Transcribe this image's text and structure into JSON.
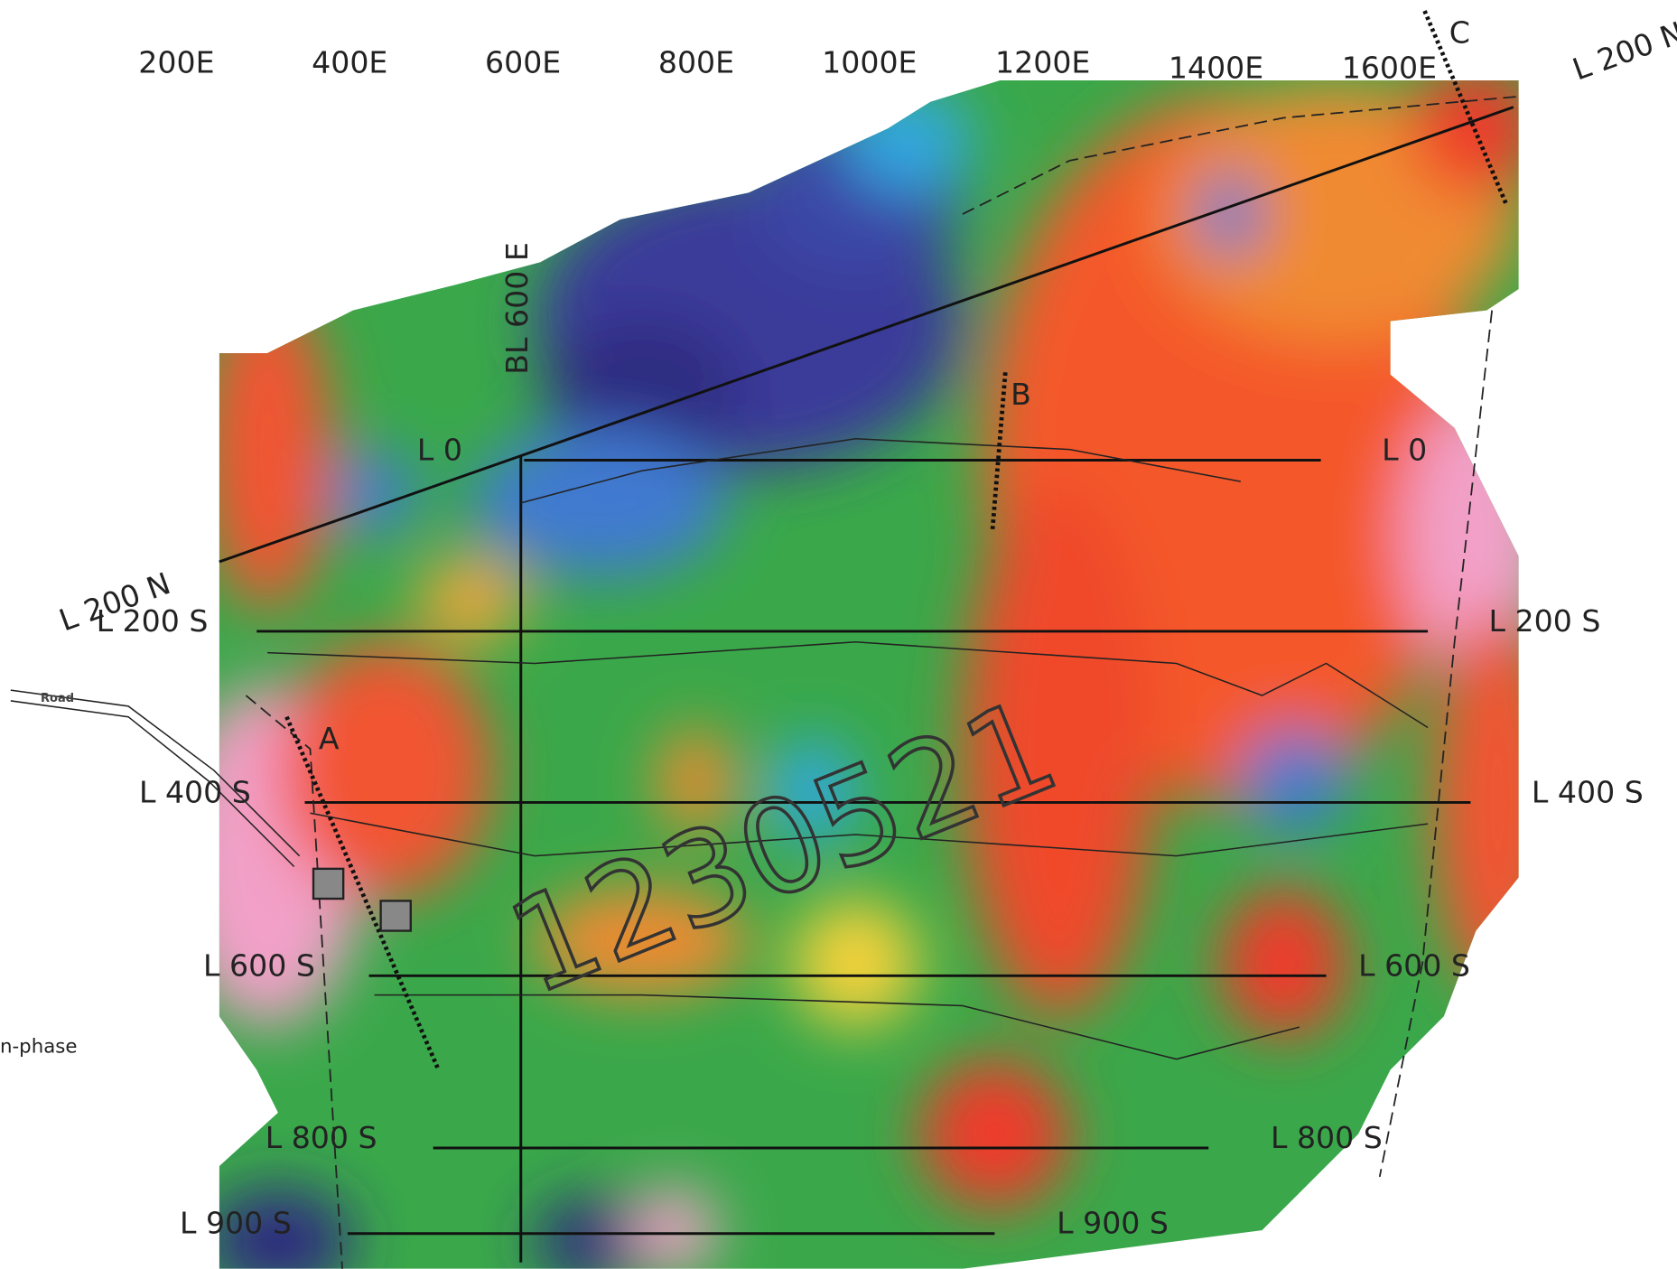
{
  "eastings": [
    "200E",
    "400E",
    "600E",
    "800E",
    "1000E",
    "1200E",
    "1400E",
    "1600E"
  ],
  "baseline": "BL 600 E",
  "lines_left": [
    "L 0",
    "L 200 S",
    "L 400 S",
    "L 600 S",
    "L 800 S",
    "L 900 S"
  ],
  "lines_right": [
    "L 0",
    "L 200 S",
    "L 400 S",
    "L 600 S",
    "L 800 S",
    "L 900 S"
  ],
  "tie_lines": [
    "L 200 N",
    "L 200 N"
  ],
  "anomalies": [
    "A",
    "B",
    "C"
  ],
  "road": "Road",
  "legend_fragment": "n-phase",
  "handwritten": "1230521"
}
